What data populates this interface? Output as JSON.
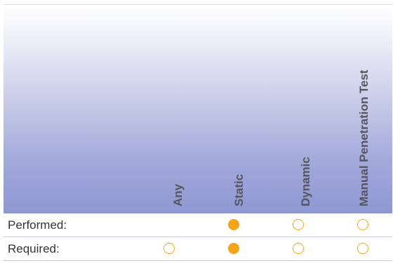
{
  "columns": {
    "any": "Any",
    "static": "Static",
    "dynamic": "Dynamic",
    "manual": "Manual Penetration Test"
  },
  "rows": [
    {
      "label": "Performed:",
      "any": null,
      "static": "filled",
      "dynamic": "empty",
      "manual": "empty"
    },
    {
      "label": "Required:",
      "any": "empty",
      "static": "filled",
      "dynamic": "empty",
      "manual": "empty"
    }
  ],
  "colors": {
    "indicator": "#f5a319",
    "header_gradient_bottom": "#8e97d2",
    "text": "#333338"
  }
}
